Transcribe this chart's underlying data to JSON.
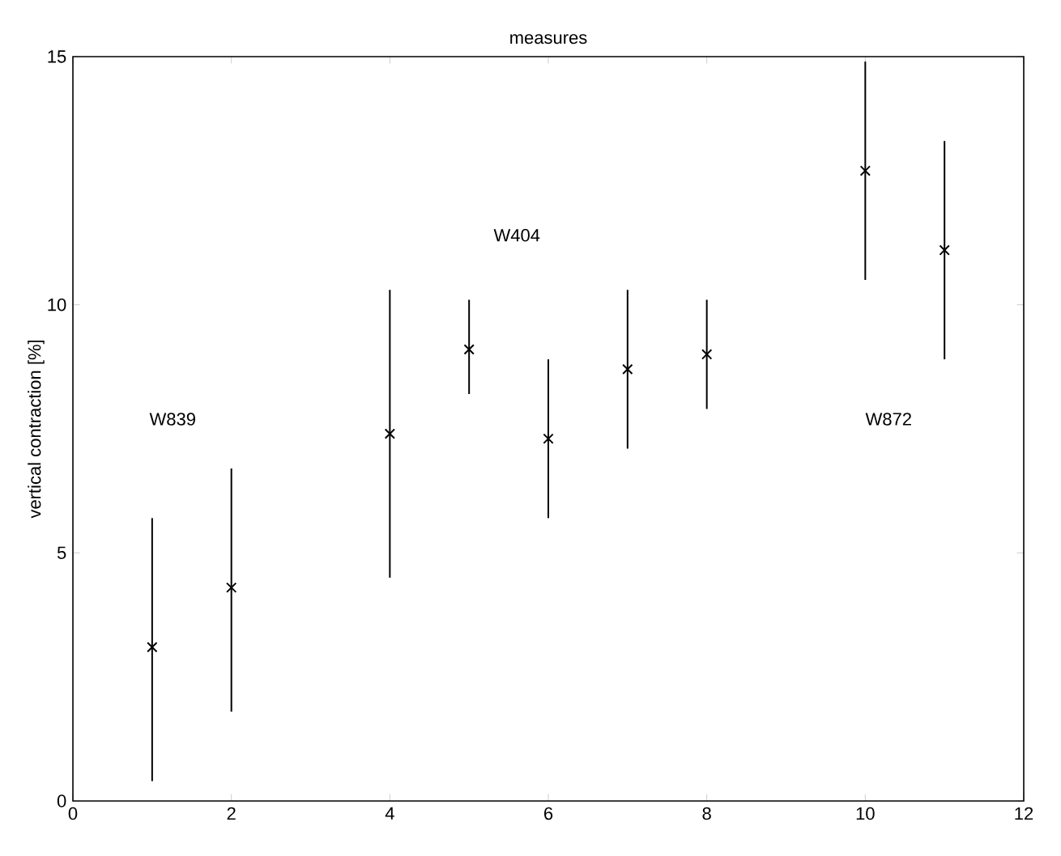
{
  "chart_data": {
    "type": "scatter",
    "title": "measures",
    "ylabel": "vertical contraction [%]",
    "x": [
      1,
      2,
      4,
      5,
      6,
      7,
      8,
      10,
      11
    ],
    "values": [
      3.1,
      4.3,
      7.4,
      9.1,
      7.3,
      8.7,
      9.0,
      12.7,
      11.1
    ],
    "errors": [
      [
        0.4,
        5.7
      ],
      [
        1.8,
        6.7
      ],
      [
        4.5,
        10.3
      ],
      [
        8.2,
        10.1
      ],
      [
        5.7,
        8.9
      ],
      [
        7.1,
        10.3
      ],
      [
        7.9,
        10.1
      ],
      [
        10.5,
        14.9
      ],
      [
        8.9,
        13.3
      ]
    ],
    "color": "#000000",
    "marker": "cross",
    "xlim": [
      0,
      12
    ],
    "ylim": [
      0,
      15
    ],
    "xticks": [
      0,
      2,
      4,
      6,
      8,
      10,
      12
    ],
    "yticks": [
      0,
      5,
      10,
      15
    ],
    "grid": false,
    "annotations": [
      "W839",
      "W404",
      "W872"
    ]
  }
}
